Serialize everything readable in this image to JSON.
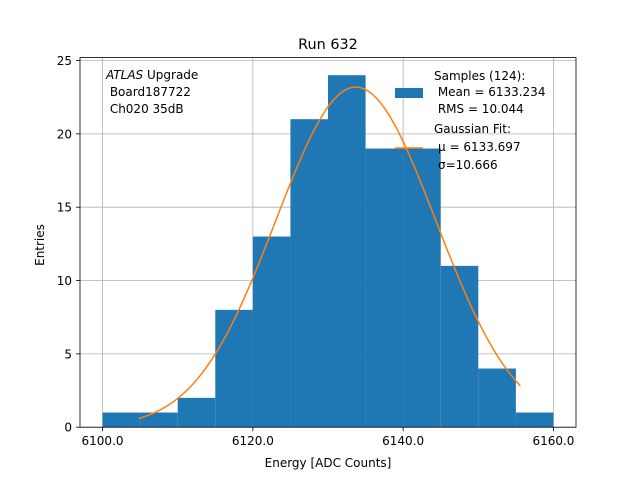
{
  "chart_data": {
    "type": "bar",
    "title": "Run 632",
    "xlabel": "Energy [ADC Counts]",
    "ylabel": "Entries",
    "xlim": [
      6097.0,
      6163.0
    ],
    "ylim": [
      0,
      25.2
    ],
    "xticks": [
      6100,
      6120,
      6140,
      6160
    ],
    "xtick_labels": [
      "6100.0",
      "6120.0",
      "6140.0",
      "6160.0"
    ],
    "yticks": [
      0,
      5,
      10,
      15,
      20,
      25
    ],
    "ytick_labels": [
      "0",
      "5",
      "10",
      "15",
      "20",
      "25"
    ],
    "grid": true,
    "bin_edges": [
      6100,
      6105,
      6110,
      6115,
      6120,
      6125,
      6130,
      6135,
      6140,
      6145,
      6150,
      6155,
      6160
    ],
    "counts": [
      1,
      1,
      2,
      8,
      13,
      21,
      24,
      19,
      19,
      11,
      4,
      1
    ],
    "bar_color": "#1f77b4",
    "fit": {
      "mu": 6133.697,
      "sigma": 10.666,
      "x_start": 6104.8,
      "x_end": 6155.6,
      "color": "#ff7f0e"
    },
    "annotation": {
      "line1_italic": "ATLAS",
      "line1_rest": " Upgrade",
      "line2": " Board187722",
      "line3": " Ch020 35dB"
    },
    "legend": {
      "placement": "top-right",
      "hist_lines": [
        "Samples (124):",
        " Mean = 6133.234",
        " RMS = 10.044"
      ],
      "fit_lines": [
        "Gaussian Fit:",
        "μ = 6133.697",
        "σ=10.666"
      ]
    }
  }
}
